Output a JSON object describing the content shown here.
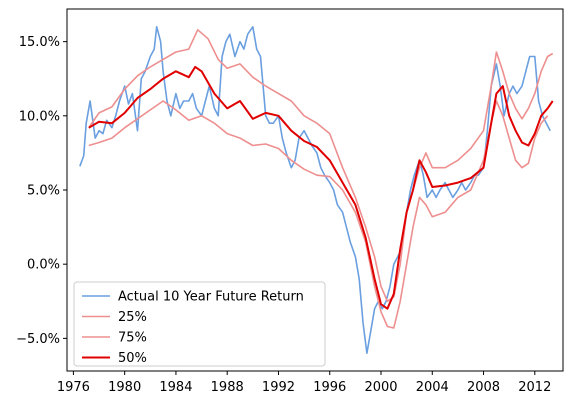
{
  "chart_data": {
    "type": "line",
    "title": "",
    "xlabel": "",
    "ylabel": "",
    "xlim": [
      1975.5,
      2014.2
    ],
    "ylim": [
      -0.072,
      0.172
    ],
    "x_ticks": [
      1976,
      1980,
      1984,
      1988,
      1992,
      1996,
      2000,
      2004,
      2008,
      2012
    ],
    "x_tick_labels": [
      "1976",
      "1980",
      "1984",
      "1988",
      "1992",
      "1996",
      "2000",
      "2004",
      "2008",
      "2012"
    ],
    "y_ticks": [
      -0.05,
      0.0,
      0.05,
      0.1,
      0.15
    ],
    "y_tick_labels": [
      "−5.0%",
      "0.0%",
      "5.0%",
      "10.0%",
      "15.0%"
    ],
    "grid": false,
    "legend_position": "lower-left",
    "series": [
      {
        "name": "Actual 10 Year Future Return",
        "color": "#6a9fe0",
        "x": [
          1976.5,
          1976.8,
          1977.0,
          1977.3,
          1977.7,
          1978.0,
          1978.3,
          1978.6,
          1979.0,
          1979.3,
          1979.6,
          1980.0,
          1980.3,
          1980.6,
          1981.0,
          1981.3,
          1981.6,
          1982.0,
          1982.3,
          1982.5,
          1982.8,
          1983.0,
          1983.3,
          1983.6,
          1984.0,
          1984.3,
          1984.6,
          1985.0,
          1985.3,
          1985.6,
          1986.0,
          1986.3,
          1986.6,
          1987.0,
          1987.3,
          1987.6,
          1987.9,
          1988.2,
          1988.6,
          1989.0,
          1989.3,
          1989.6,
          1990.0,
          1990.3,
          1990.6,
          1991.0,
          1991.3,
          1991.6,
          1992.0,
          1992.3,
          1992.6,
          1993.0,
          1993.3,
          1993.6,
          1994.0,
          1994.3,
          1994.6,
          1995.0,
          1995.3,
          1995.6,
          1996.0,
          1996.3,
          1996.6,
          1997.0,
          1997.3,
          1997.6,
          1998.0,
          1998.3,
          1998.6,
          1998.9,
          1999.2,
          1999.5,
          1999.8,
          2000.1,
          2000.4,
          2000.7,
          2001.0,
          2001.3,
          2001.6,
          2002.0,
          2002.3,
          2002.6,
          2003.0,
          2003.3,
          2003.6,
          2004.0,
          2004.3,
          2004.6,
          2005.0,
          2005.3,
          2005.6,
          2006.0,
          2006.3,
          2006.6,
          2007.0,
          2007.3,
          2007.6,
          2008.0,
          2008.3,
          2008.6,
          2009.0,
          2009.3,
          2009.6,
          2010.0,
          2010.3,
          2010.6,
          2011.0,
          2011.3,
          2011.6,
          2012.0,
          2012.3,
          2012.6,
          2012.9,
          2013.2
        ],
        "y": [
          0.066,
          0.073,
          0.095,
          0.11,
          0.085,
          0.09,
          0.088,
          0.097,
          0.092,
          0.1,
          0.11,
          0.12,
          0.108,
          0.115,
          0.09,
          0.125,
          0.13,
          0.14,
          0.145,
          0.16,
          0.15,
          0.13,
          0.11,
          0.1,
          0.115,
          0.105,
          0.11,
          0.11,
          0.115,
          0.105,
          0.1,
          0.11,
          0.12,
          0.105,
          0.1,
          0.14,
          0.15,
          0.155,
          0.14,
          0.15,
          0.145,
          0.155,
          0.16,
          0.145,
          0.14,
          0.1,
          0.095,
          0.095,
          0.1,
          0.085,
          0.075,
          0.065,
          0.07,
          0.085,
          0.09,
          0.085,
          0.08,
          0.075,
          0.065,
          0.06,
          0.055,
          0.05,
          0.04,
          0.035,
          0.025,
          0.015,
          0.005,
          -0.01,
          -0.04,
          -0.06,
          -0.045,
          -0.03,
          -0.025,
          -0.03,
          -0.025,
          -0.015,
          0.0,
          0.005,
          0.01,
          0.035,
          0.05,
          0.06,
          0.07,
          0.06,
          0.045,
          0.05,
          0.045,
          0.05,
          0.055,
          0.05,
          0.045,
          0.05,
          0.055,
          0.05,
          0.055,
          0.06,
          0.06,
          0.065,
          0.09,
          0.12,
          0.135,
          0.12,
          0.1,
          0.115,
          0.12,
          0.115,
          0.12,
          0.13,
          0.14,
          0.14,
          0.11,
          0.1,
          0.095,
          0.09
        ]
      },
      {
        "name": "25%",
        "color": "#ee8f8f",
        "x": [
          1977.2,
          1978.0,
          1979.0,
          1980.0,
          1981.0,
          1982.0,
          1983.0,
          1984.0,
          1985.0,
          1986.0,
          1987.0,
          1988.0,
          1989.0,
          1990.0,
          1991.0,
          1992.0,
          1993.0,
          1994.0,
          1995.0,
          1996.0,
          1997.0,
          1998.0,
          1998.8,
          1999.5,
          2000.0,
          2000.5,
          2001.0,
          2001.5,
          2002.0,
          2002.5,
          2003.0,
          2003.5,
          2004.0,
          2005.0,
          2006.0,
          2007.0,
          2008.0,
          2008.6,
          2009.0,
          2009.5,
          2010.0,
          2010.5,
          2011.0,
          2011.5,
          2012.0,
          2012.5,
          2013.0
        ],
        "y": [
          0.08,
          0.082,
          0.085,
          0.092,
          0.098,
          0.104,
          0.11,
          0.104,
          0.097,
          0.1,
          0.095,
          0.088,
          0.085,
          0.08,
          0.081,
          0.078,
          0.07,
          0.064,
          0.06,
          0.059,
          0.05,
          0.035,
          0.015,
          -0.015,
          -0.032,
          -0.042,
          -0.043,
          -0.025,
          0.0,
          0.025,
          0.045,
          0.04,
          0.032,
          0.035,
          0.045,
          0.05,
          0.07,
          0.095,
          0.11,
          0.1,
          0.085,
          0.07,
          0.065,
          0.068,
          0.085,
          0.095,
          0.1
        ]
      },
      {
        "name": "75%",
        "color": "#ee8f8f",
        "x": [
          1977.2,
          1978.0,
          1979.0,
          1980.0,
          1981.0,
          1982.0,
          1983.0,
          1984.0,
          1985.0,
          1985.7,
          1986.5,
          1987.3,
          1988.0,
          1989.0,
          1990.0,
          1991.0,
          1992.0,
          1993.0,
          1994.0,
          1995.0,
          1996.0,
          1997.0,
          1998.0,
          1998.8,
          1999.5,
          2000.0,
          2000.5,
          2001.0,
          2001.5,
          2002.0,
          2002.5,
          2003.0,
          2003.5,
          2004.0,
          2005.0,
          2006.0,
          2007.0,
          2008.0,
          2008.6,
          2009.0,
          2009.5,
          2010.0,
          2010.5,
          2011.0,
          2011.5,
          2012.0,
          2012.5,
          2013.0,
          2013.4
        ],
        "y": [
          0.092,
          0.102,
          0.106,
          0.118,
          0.127,
          0.133,
          0.138,
          0.143,
          0.145,
          0.158,
          0.152,
          0.138,
          0.132,
          0.135,
          0.126,
          0.12,
          0.115,
          0.11,
          0.1,
          0.095,
          0.088,
          0.065,
          0.045,
          0.025,
          0.005,
          -0.015,
          -0.025,
          -0.022,
          0.0,
          0.035,
          0.05,
          0.065,
          0.075,
          0.065,
          0.065,
          0.07,
          0.078,
          0.09,
          0.12,
          0.143,
          0.13,
          0.115,
          0.105,
          0.098,
          0.105,
          0.115,
          0.13,
          0.14,
          0.142
        ]
      },
      {
        "name": "50%",
        "color": "#e00000",
        "x": [
          1977.2,
          1978.0,
          1979.0,
          1980.0,
          1981.0,
          1982.0,
          1983.0,
          1984.0,
          1985.0,
          1985.5,
          1986.0,
          1987.0,
          1988.0,
          1989.0,
          1990.0,
          1991.0,
          1992.0,
          1993.0,
          1994.0,
          1995.0,
          1996.0,
          1997.0,
          1998.0,
          1998.8,
          1999.5,
          2000.0,
          2000.5,
          2001.0,
          2001.5,
          2002.0,
          2002.5,
          2003.0,
          2003.5,
          2004.0,
          2005.0,
          2006.0,
          2007.0,
          2008.0,
          2008.6,
          2009.0,
          2009.5,
          2010.0,
          2010.5,
          2011.0,
          2011.5,
          2012.0,
          2012.5,
          2013.0,
          2013.4
        ],
        "y": [
          0.092,
          0.096,
          0.095,
          0.102,
          0.112,
          0.118,
          0.125,
          0.13,
          0.126,
          0.133,
          0.13,
          0.115,
          0.105,
          0.11,
          0.098,
          0.102,
          0.1,
          0.09,
          0.083,
          0.079,
          0.07,
          0.055,
          0.04,
          0.018,
          -0.01,
          -0.027,
          -0.03,
          -0.02,
          0.01,
          0.035,
          0.05,
          0.07,
          0.062,
          0.052,
          0.053,
          0.055,
          0.058,
          0.065,
          0.095,
          0.115,
          0.12,
          0.1,
          0.09,
          0.082,
          0.08,
          0.088,
          0.1,
          0.105,
          0.11
        ]
      }
    ]
  }
}
